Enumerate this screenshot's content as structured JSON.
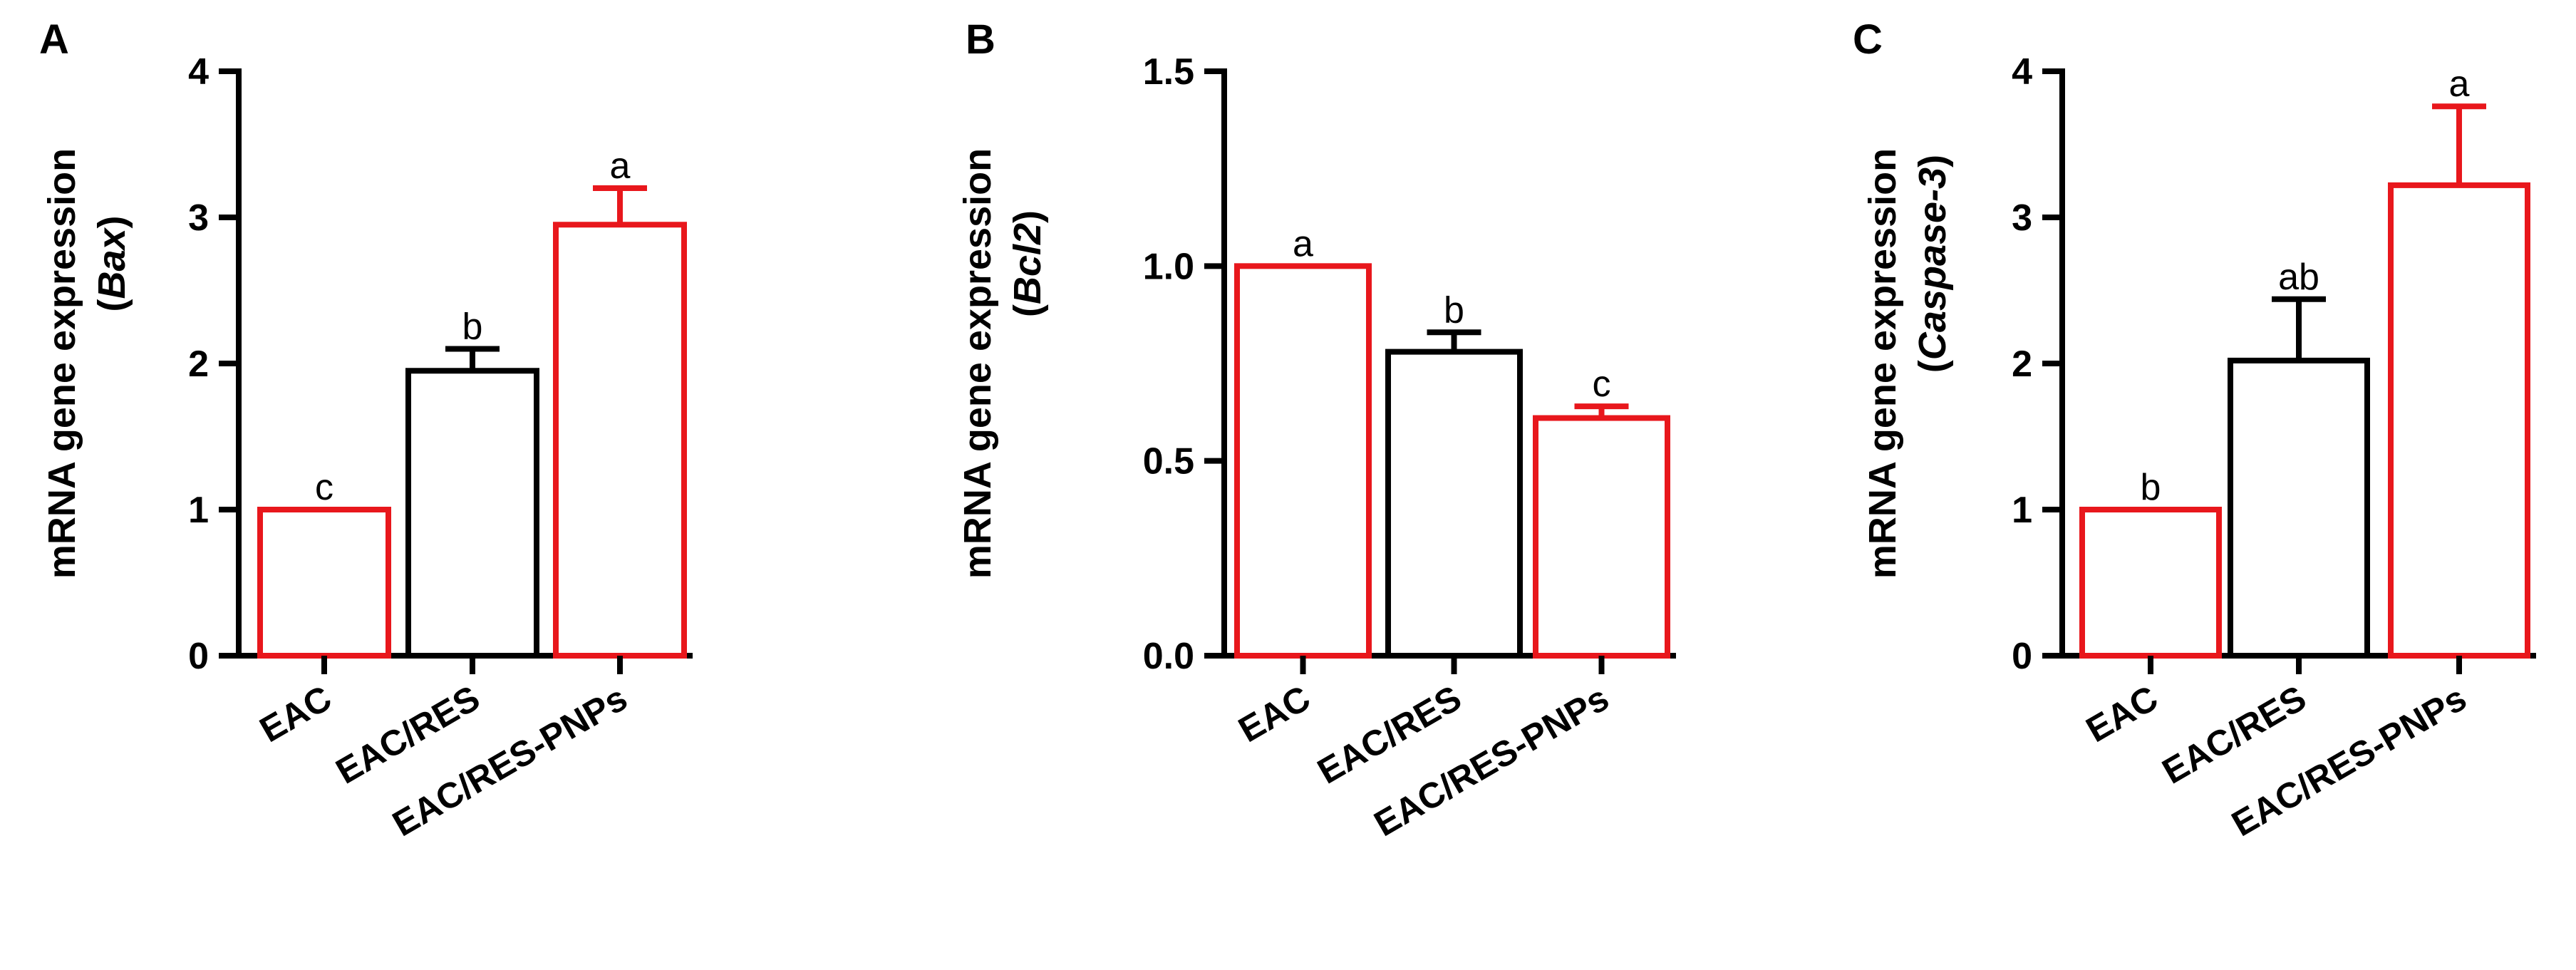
{
  "chart_data": [
    {
      "type": "bar",
      "panel": "A",
      "ylabel_line1": "mRNA gene expression",
      "ylabel_line2": "Bax",
      "categories": [
        "EAC",
        "EAC/RES",
        "EAC/RES-PNPs"
      ],
      "values": [
        1.0,
        1.95,
        2.95
      ],
      "errors": [
        0,
        0.15,
        0.25
      ],
      "significance": [
        "c",
        "b",
        "a"
      ],
      "bar_colors": [
        "#e8171c",
        "#000000",
        "#e8171c"
      ],
      "ylim": [
        0,
        4
      ],
      "yticks": [
        "0",
        "1",
        "2",
        "3",
        "4"
      ],
      "ytick_values": [
        0,
        1,
        2,
        3,
        4
      ]
    },
    {
      "type": "bar",
      "panel": "B",
      "ylabel_line1": "mRNA gene expression",
      "ylabel_line2": "Bcl2",
      "categories": [
        "EAC",
        "EAC/RES",
        "EAC/RES-PNPs"
      ],
      "values": [
        1.0,
        0.78,
        0.61
      ],
      "errors": [
        0,
        0.05,
        0.03
      ],
      "significance": [
        "a",
        "b",
        "c"
      ],
      "bar_colors": [
        "#e8171c",
        "#000000",
        "#e8171c"
      ],
      "ylim": [
        0,
        1.5
      ],
      "yticks": [
        "0.0",
        "0.5",
        "1.0",
        "1.5"
      ],
      "ytick_values": [
        0,
        0.5,
        1.0,
        1.5
      ]
    },
    {
      "type": "bar",
      "panel": "C",
      "ylabel_line1": "mRNA gene expression",
      "ylabel_line2": "Caspase-3",
      "categories": [
        "EAC",
        "EAC/RES",
        "EAC/RES-PNPs"
      ],
      "values": [
        1.0,
        2.02,
        3.22
      ],
      "errors": [
        0,
        0.42,
        0.54
      ],
      "significance": [
        "b",
        "ab",
        "a"
      ],
      "bar_colors": [
        "#e8171c",
        "#000000",
        "#e8171c"
      ],
      "ylim": [
        0,
        4
      ],
      "yticks": [
        "0",
        "1",
        "2",
        "3",
        "4"
      ],
      "ytick_values": [
        0,
        1,
        2,
        3,
        4
      ]
    }
  ]
}
